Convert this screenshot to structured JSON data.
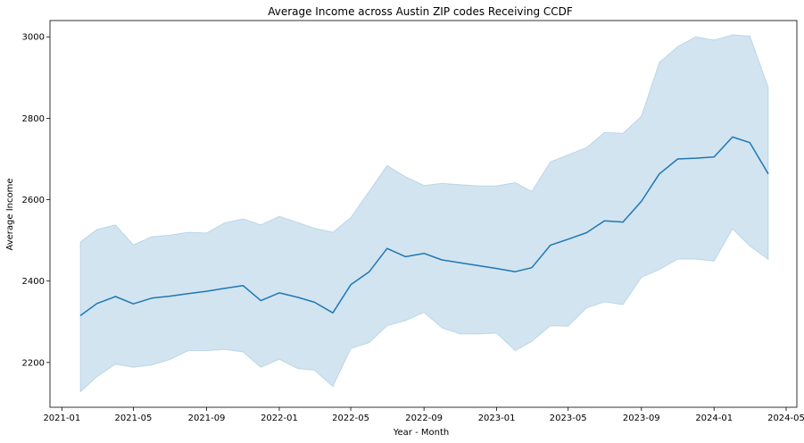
{
  "chart_data": {
    "type": "line",
    "title": "Average Income across Austin ZIP codes Receiving CCDF",
    "xlabel": "Year - Month",
    "ylabel": "Average Income",
    "x_tick_labels": [
      "2021-01",
      "2021-05",
      "2021-09",
      "2022-01",
      "2022-05",
      "2022-09",
      "2023-01",
      "2023-05",
      "2023-09",
      "2024-01",
      "2024-05"
    ],
    "y_ticks": [
      2200,
      2400,
      2600,
      2800,
      3000
    ],
    "xlim": [
      "2020-12-12",
      "2024-05-19"
    ],
    "ylim": [
      2090,
      3040
    ],
    "grid": false,
    "colors": {
      "line": "#1f77b4",
      "band": "#1f77b4",
      "band_opacity": 0.2
    },
    "series": [
      {
        "x": [
          "2021-02",
          "2021-03",
          "2021-04",
          "2021-05",
          "2021-06",
          "2021-07",
          "2021-08",
          "2021-09",
          "2021-10",
          "2021-11",
          "2021-12",
          "2022-01",
          "2022-02",
          "2022-03",
          "2022-04",
          "2022-05",
          "2022-06",
          "2022-07",
          "2022-08",
          "2022-09",
          "2022-10",
          "2022-11",
          "2022-12",
          "2023-01",
          "2023-02",
          "2023-03",
          "2023-04",
          "2023-05",
          "2023-06",
          "2023-07",
          "2023-08",
          "2023-09",
          "2023-10",
          "2023-11",
          "2023-12",
          "2024-01",
          "2024-02",
          "2024-03",
          "2024-04"
        ],
        "y": [
          2315,
          2345,
          2362,
          2344,
          2358,
          2363,
          2369,
          2375,
          2382,
          2389,
          2352,
          2371,
          2360,
          2348,
          2322,
          2391,
          2423,
          2480,
          2460,
          2468,
          2452,
          2445,
          2438,
          2431,
          2423,
          2433,
          2488,
          2503,
          2519,
          2548,
          2545,
          2596,
          2663,
          2700,
          2702,
          2705,
          2754,
          2740,
          2663
        ],
        "lower": [
          2128,
          2165,
          2196,
          2188,
          2194,
          2207,
          2229,
          2229,
          2232,
          2226,
          2188,
          2208,
          2185,
          2181,
          2141,
          2234,
          2249,
          2290,
          2303,
          2323,
          2285,
          2270,
          2270,
          2272,
          2229,
          2252,
          2290,
          2289,
          2334,
          2349,
          2342,
          2409,
          2428,
          2454,
          2454,
          2449,
          2528,
          2486,
          2453
        ],
        "upper": [
          2496,
          2527,
          2538,
          2489,
          2509,
          2513,
          2520,
          2518,
          2543,
          2553,
          2538,
          2559,
          2544,
          2530,
          2520,
          2556,
          2621,
          2684,
          2656,
          2635,
          2640,
          2637,
          2634,
          2634,
          2642,
          2620,
          2693,
          2710,
          2728,
          2765,
          2763,
          2805,
          2937,
          2976,
          3000,
          2992,
          3005,
          3002,
          2876
        ]
      }
    ]
  }
}
